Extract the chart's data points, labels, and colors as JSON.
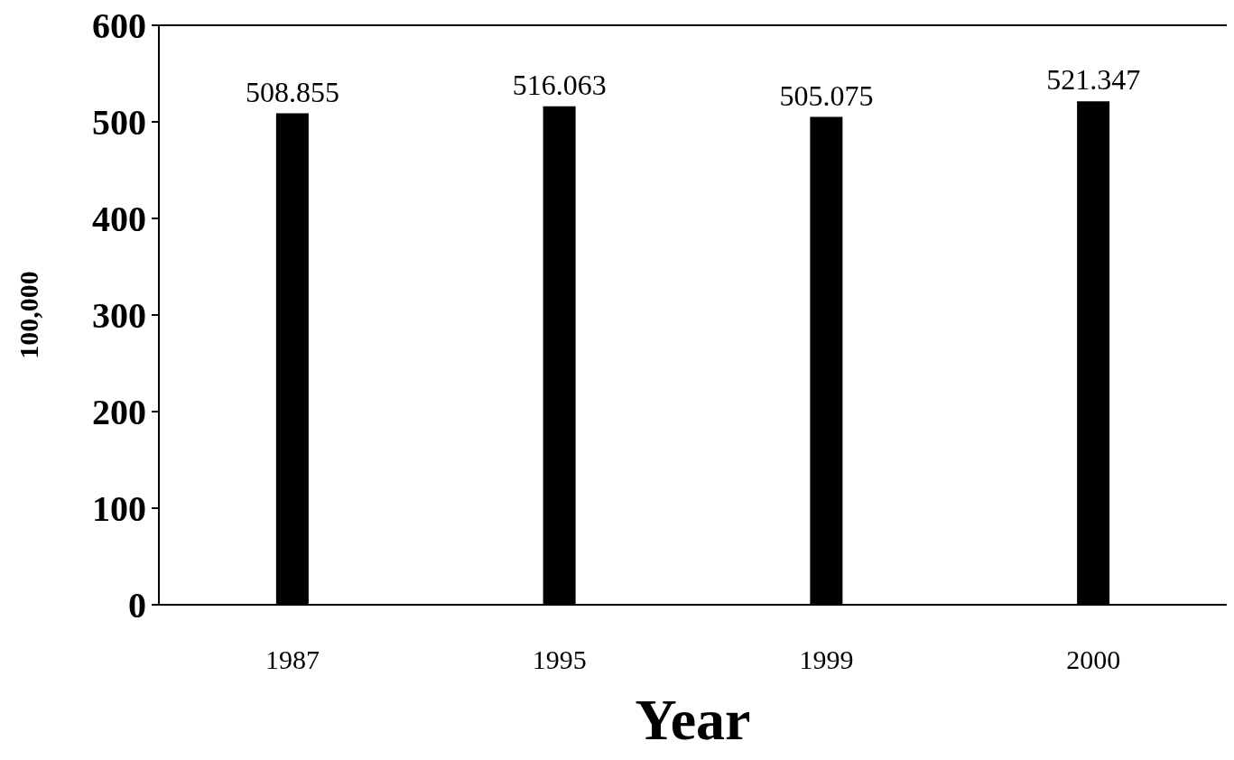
{
  "chart_data": {
    "type": "bar",
    "xlabel": "Year",
    "ylabel": "100,000",
    "categories": [
      "1987",
      "1995",
      "1999",
      "2000"
    ],
    "values": [
      508.855,
      516.063,
      505.075,
      521.347
    ],
    "color": "#000000",
    "ylim": [
      0,
      600
    ],
    "yticks": [
      0,
      100,
      200,
      300,
      400,
      500,
      600
    ],
    "grid": false,
    "data_labels": true
  }
}
